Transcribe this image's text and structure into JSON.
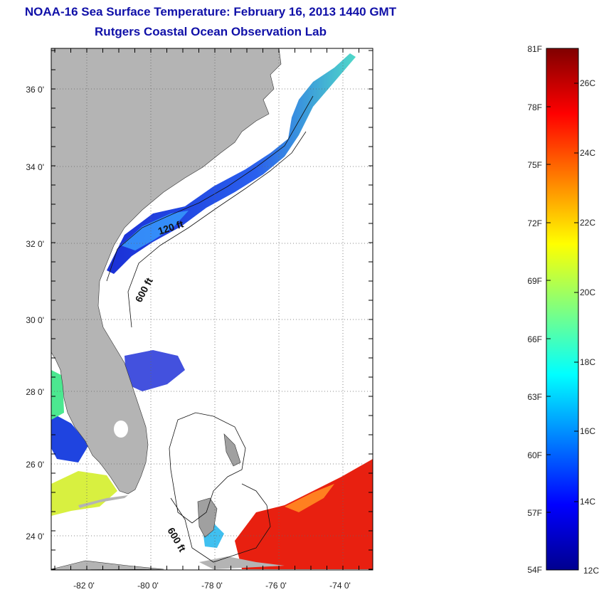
{
  "header": {
    "title": "NOAA-16 Sea Surface Temperature:  February 16, 2013 1440 GMT",
    "subtitle": "Rutgers Coastal Ocean Observation Lab"
  },
  "map": {
    "lon_ticks": [
      "-82 0'",
      "-80 0'",
      "-78 0'",
      "-76 0'",
      "-74 0'"
    ],
    "lat_ticks": [
      "36 0'",
      "34 0'",
      "32 0'",
      "30 0'",
      "28 0'",
      "26 0'",
      "24 0'"
    ],
    "contour_labels": [
      "120 ft",
      "600 ft",
      "600 ft"
    ],
    "colors": {
      "land": "#b4b4b4",
      "ocean_nodata": "#ffffff",
      "grid": "#666666"
    }
  },
  "colorbar": {
    "fahrenheit": [
      "81F",
      "78F",
      "75F",
      "72F",
      "69F",
      "66F",
      "63F",
      "60F",
      "57F",
      "54F"
    ],
    "celsius": [
      "26C",
      "24C",
      "22C",
      "20C",
      "18C",
      "16C",
      "14C",
      "12C"
    ],
    "range_c": [
      12,
      27
    ],
    "colormap": "jet"
  }
}
